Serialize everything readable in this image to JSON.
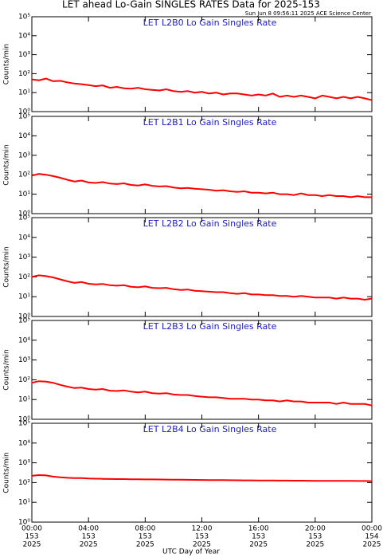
{
  "title": "LET ahead Lo-Gain SINGLES RATES Data for 2025-153",
  "timestamp": "Sun Jun  8 09:56:11 2025 ACE Science Center",
  "xlabel": "UTC Day of Year",
  "xticks": [
    {
      "value": 0,
      "label": [
        "00:00",
        "153",
        "2025"
      ]
    },
    {
      "value": 4,
      "label": [
        "04:00",
        "153",
        "2025"
      ]
    },
    {
      "value": 8,
      "label": [
        "08:00",
        "153",
        "2025"
      ]
    },
    {
      "value": 12,
      "label": [
        "12:00",
        "153",
        "2025"
      ]
    },
    {
      "value": 16,
      "label": [
        "16:00",
        "153",
        "2025"
      ]
    },
    {
      "value": 20,
      "label": [
        "20:00",
        "153",
        "2025"
      ]
    },
    {
      "value": 24,
      "label": [
        "00:00",
        "154",
        "2025"
      ]
    }
  ],
  "chart_data": [
    {
      "type": "line",
      "title": "LET L2B0 Lo Gain Singles Rate",
      "ylabel": "Counts/min",
      "color": "#ff0000",
      "log_scale": true,
      "xlim": [
        0,
        24
      ],
      "ylim": [
        1,
        100000
      ],
      "yticks": [
        {
          "value": 1,
          "label": "10⁰"
        },
        {
          "value": 10,
          "label": "10¹"
        },
        {
          "value": 100,
          "label": "10²"
        },
        {
          "value": 1000,
          "label": "10³"
        },
        {
          "value": 10000,
          "label": "10⁴"
        },
        {
          "value": 100000,
          "label": "10⁵"
        }
      ],
      "x": [
        0,
        0.5,
        1,
        1.5,
        2,
        2.5,
        3,
        3.5,
        4,
        4.5,
        5,
        5.5,
        6,
        6.5,
        7,
        7.5,
        8,
        8.5,
        9,
        9.5,
        10,
        10.5,
        11,
        11.5,
        12,
        12.5,
        13,
        13.5,
        14,
        14.5,
        15,
        15.5,
        16,
        16.5,
        17,
        17.5,
        18,
        18.5,
        19,
        19.5,
        20,
        20.5,
        21,
        21.5,
        22,
        22.5,
        23,
        23.5,
        24
      ],
      "values": [
        50,
        45,
        55,
        40,
        42,
        35,
        30,
        28,
        25,
        22,
        24,
        18,
        20,
        17,
        16,
        18,
        15,
        14,
        13,
        15,
        12,
        11,
        12,
        10,
        11,
        9,
        10,
        8,
        9,
        9,
        8,
        7,
        8,
        7,
        9,
        6,
        7,
        6,
        7,
        6,
        5,
        7,
        6,
        5,
        6,
        5,
        6,
        5,
        4
      ]
    },
    {
      "type": "line",
      "title": "LET L2B1 Lo Gain Singles Rate",
      "ylabel": "Counts/min",
      "color": "#ff0000",
      "log_scale": true,
      "xlim": [
        0,
        24
      ],
      "ylim": [
        1,
        100000
      ],
      "yticks": [
        {
          "value": 1,
          "label": "10⁰"
        },
        {
          "value": 10,
          "label": "10¹"
        },
        {
          "value": 100,
          "label": "10²"
        },
        {
          "value": 1000,
          "label": "10³"
        },
        {
          "value": 10000,
          "label": "10⁴"
        },
        {
          "value": 100000,
          "label": "10⁵"
        }
      ],
      "x": [
        0,
        0.5,
        1,
        1.5,
        2,
        2.5,
        3,
        3.5,
        4,
        4.5,
        5,
        5.5,
        6,
        6.5,
        7,
        7.5,
        8,
        8.5,
        9,
        9.5,
        10,
        10.5,
        11,
        11.5,
        12,
        12.5,
        13,
        13.5,
        14,
        14.5,
        15,
        15.5,
        16,
        16.5,
        17,
        17.5,
        18,
        18.5,
        19,
        19.5,
        20,
        20.5,
        21,
        21.5,
        22,
        22.5,
        23,
        23.5,
        24
      ],
      "values": [
        90,
        110,
        100,
        85,
        70,
        55,
        45,
        50,
        40,
        38,
        42,
        35,
        33,
        36,
        30,
        28,
        32,
        27,
        25,
        26,
        22,
        20,
        21,
        19,
        18,
        17,
        15,
        16,
        14,
        13,
        14,
        12,
        12,
        11,
        12,
        10,
        10,
        9,
        11,
        9,
        9,
        8,
        9,
        8,
        8,
        7,
        8,
        7,
        7
      ]
    },
    {
      "type": "line",
      "title": "LET L2B2 Lo Gain Singles Rate",
      "ylabel": "Counts/min",
      "color": "#ff0000",
      "log_scale": true,
      "xlim": [
        0,
        24
      ],
      "ylim": [
        1,
        100000
      ],
      "yticks": [
        {
          "value": 1,
          "label": "10⁰"
        },
        {
          "value": 10,
          "label": "10¹"
        },
        {
          "value": 100,
          "label": "10²"
        },
        {
          "value": 1000,
          "label": "10³"
        },
        {
          "value": 10000,
          "label": "10⁴"
        },
        {
          "value": 100000,
          "label": "10⁵"
        }
      ],
      "x": [
        0,
        0.5,
        1,
        1.5,
        2,
        2.5,
        3,
        3.5,
        4,
        4.5,
        5,
        5.5,
        6,
        6.5,
        7,
        7.5,
        8,
        8.5,
        9,
        9.5,
        10,
        10.5,
        11,
        11.5,
        12,
        12.5,
        13,
        13.5,
        14,
        14.5,
        15,
        15.5,
        16,
        16.5,
        17,
        17.5,
        18,
        18.5,
        19,
        19.5,
        20,
        20.5,
        21,
        21.5,
        22,
        22.5,
        23,
        23.5,
        24
      ],
      "values": [
        100,
        120,
        110,
        95,
        75,
        60,
        50,
        55,
        45,
        42,
        44,
        38,
        36,
        38,
        32,
        30,
        33,
        28,
        27,
        28,
        24,
        22,
        23,
        20,
        19,
        18,
        17,
        17,
        15,
        14,
        15,
        13,
        13,
        12,
        12,
        11,
        11,
        10,
        11,
        10,
        9,
        9,
        9,
        8,
        9,
        8,
        8,
        7,
        8
      ]
    },
    {
      "type": "line",
      "title": "LET L2B3 Lo Gain Singles Rate",
      "ylabel": "Counts/min",
      "color": "#ff0000",
      "log_scale": true,
      "xlim": [
        0,
        24
      ],
      "ylim": [
        1,
        100000
      ],
      "yticks": [
        {
          "value": 1,
          "label": "10⁰"
        },
        {
          "value": 10,
          "label": "10¹"
        },
        {
          "value": 100,
          "label": "10²"
        },
        {
          "value": 1000,
          "label": "10³"
        },
        {
          "value": 10000,
          "label": "10⁴"
        },
        {
          "value": 100000,
          "label": "10⁵"
        }
      ],
      "x": [
        0,
        0.5,
        1,
        1.5,
        2,
        2.5,
        3,
        3.5,
        4,
        4.5,
        5,
        5.5,
        6,
        6.5,
        7,
        7.5,
        8,
        8.5,
        9,
        9.5,
        10,
        10.5,
        11,
        11.5,
        12,
        12.5,
        13,
        13.5,
        14,
        14.5,
        15,
        15.5,
        16,
        16.5,
        17,
        17.5,
        18,
        18.5,
        19,
        19.5,
        20,
        20.5,
        21,
        21.5,
        22,
        22.5,
        23,
        23.5,
        24
      ],
      "values": [
        70,
        85,
        80,
        70,
        55,
        45,
        38,
        40,
        34,
        32,
        34,
        28,
        27,
        29,
        25,
        23,
        25,
        21,
        20,
        21,
        18,
        17,
        17,
        15,
        14,
        13,
        13,
        12,
        11,
        11,
        11,
        10,
        10,
        9,
        9,
        8,
        9,
        8,
        8,
        7,
        7,
        7,
        7,
        6,
        7,
        6,
        6,
        6,
        5
      ]
    },
    {
      "type": "line",
      "title": "LET L2B4 Lo Gain Singles Rate",
      "ylabel": "Counts/min",
      "color": "#ff0000",
      "log_scale": true,
      "xlim": [
        0,
        24
      ],
      "ylim": [
        1,
        100000
      ],
      "yticks": [
        {
          "value": 1,
          "label": "10⁰"
        },
        {
          "value": 10,
          "label": "10¹"
        },
        {
          "value": 100,
          "label": "10²"
        },
        {
          "value": 1000,
          "label": "10³"
        },
        {
          "value": 10000,
          "label": "10⁴"
        },
        {
          "value": 100000,
          "label": "10⁵"
        }
      ],
      "x": [
        0,
        0.5,
        1,
        1.5,
        2,
        2.5,
        3,
        3.5,
        4,
        4.5,
        5,
        5.5,
        6,
        6.5,
        7,
        7.5,
        8,
        8.5,
        9,
        9.5,
        10,
        10.5,
        11,
        11.5,
        12,
        12.5,
        13,
        13.5,
        14,
        14.5,
        15,
        15.5,
        16,
        16.5,
        17,
        17.5,
        18,
        18.5,
        19,
        19.5,
        20,
        20.5,
        21,
        21.5,
        22,
        22.5,
        23,
        23.5,
        24
      ],
      "values": [
        220,
        240,
        230,
        200,
        185,
        175,
        170,
        168,
        160,
        158,
        155,
        152,
        150,
        150,
        148,
        147,
        145,
        145,
        143,
        142,
        140,
        140,
        138,
        137,
        136,
        135,
        134,
        133,
        132,
        131,
        130,
        130,
        129,
        128,
        127,
        126,
        126,
        125,
        125,
        124,
        123,
        123,
        122,
        122,
        121,
        121,
        120,
        120,
        118
      ]
    }
  ]
}
